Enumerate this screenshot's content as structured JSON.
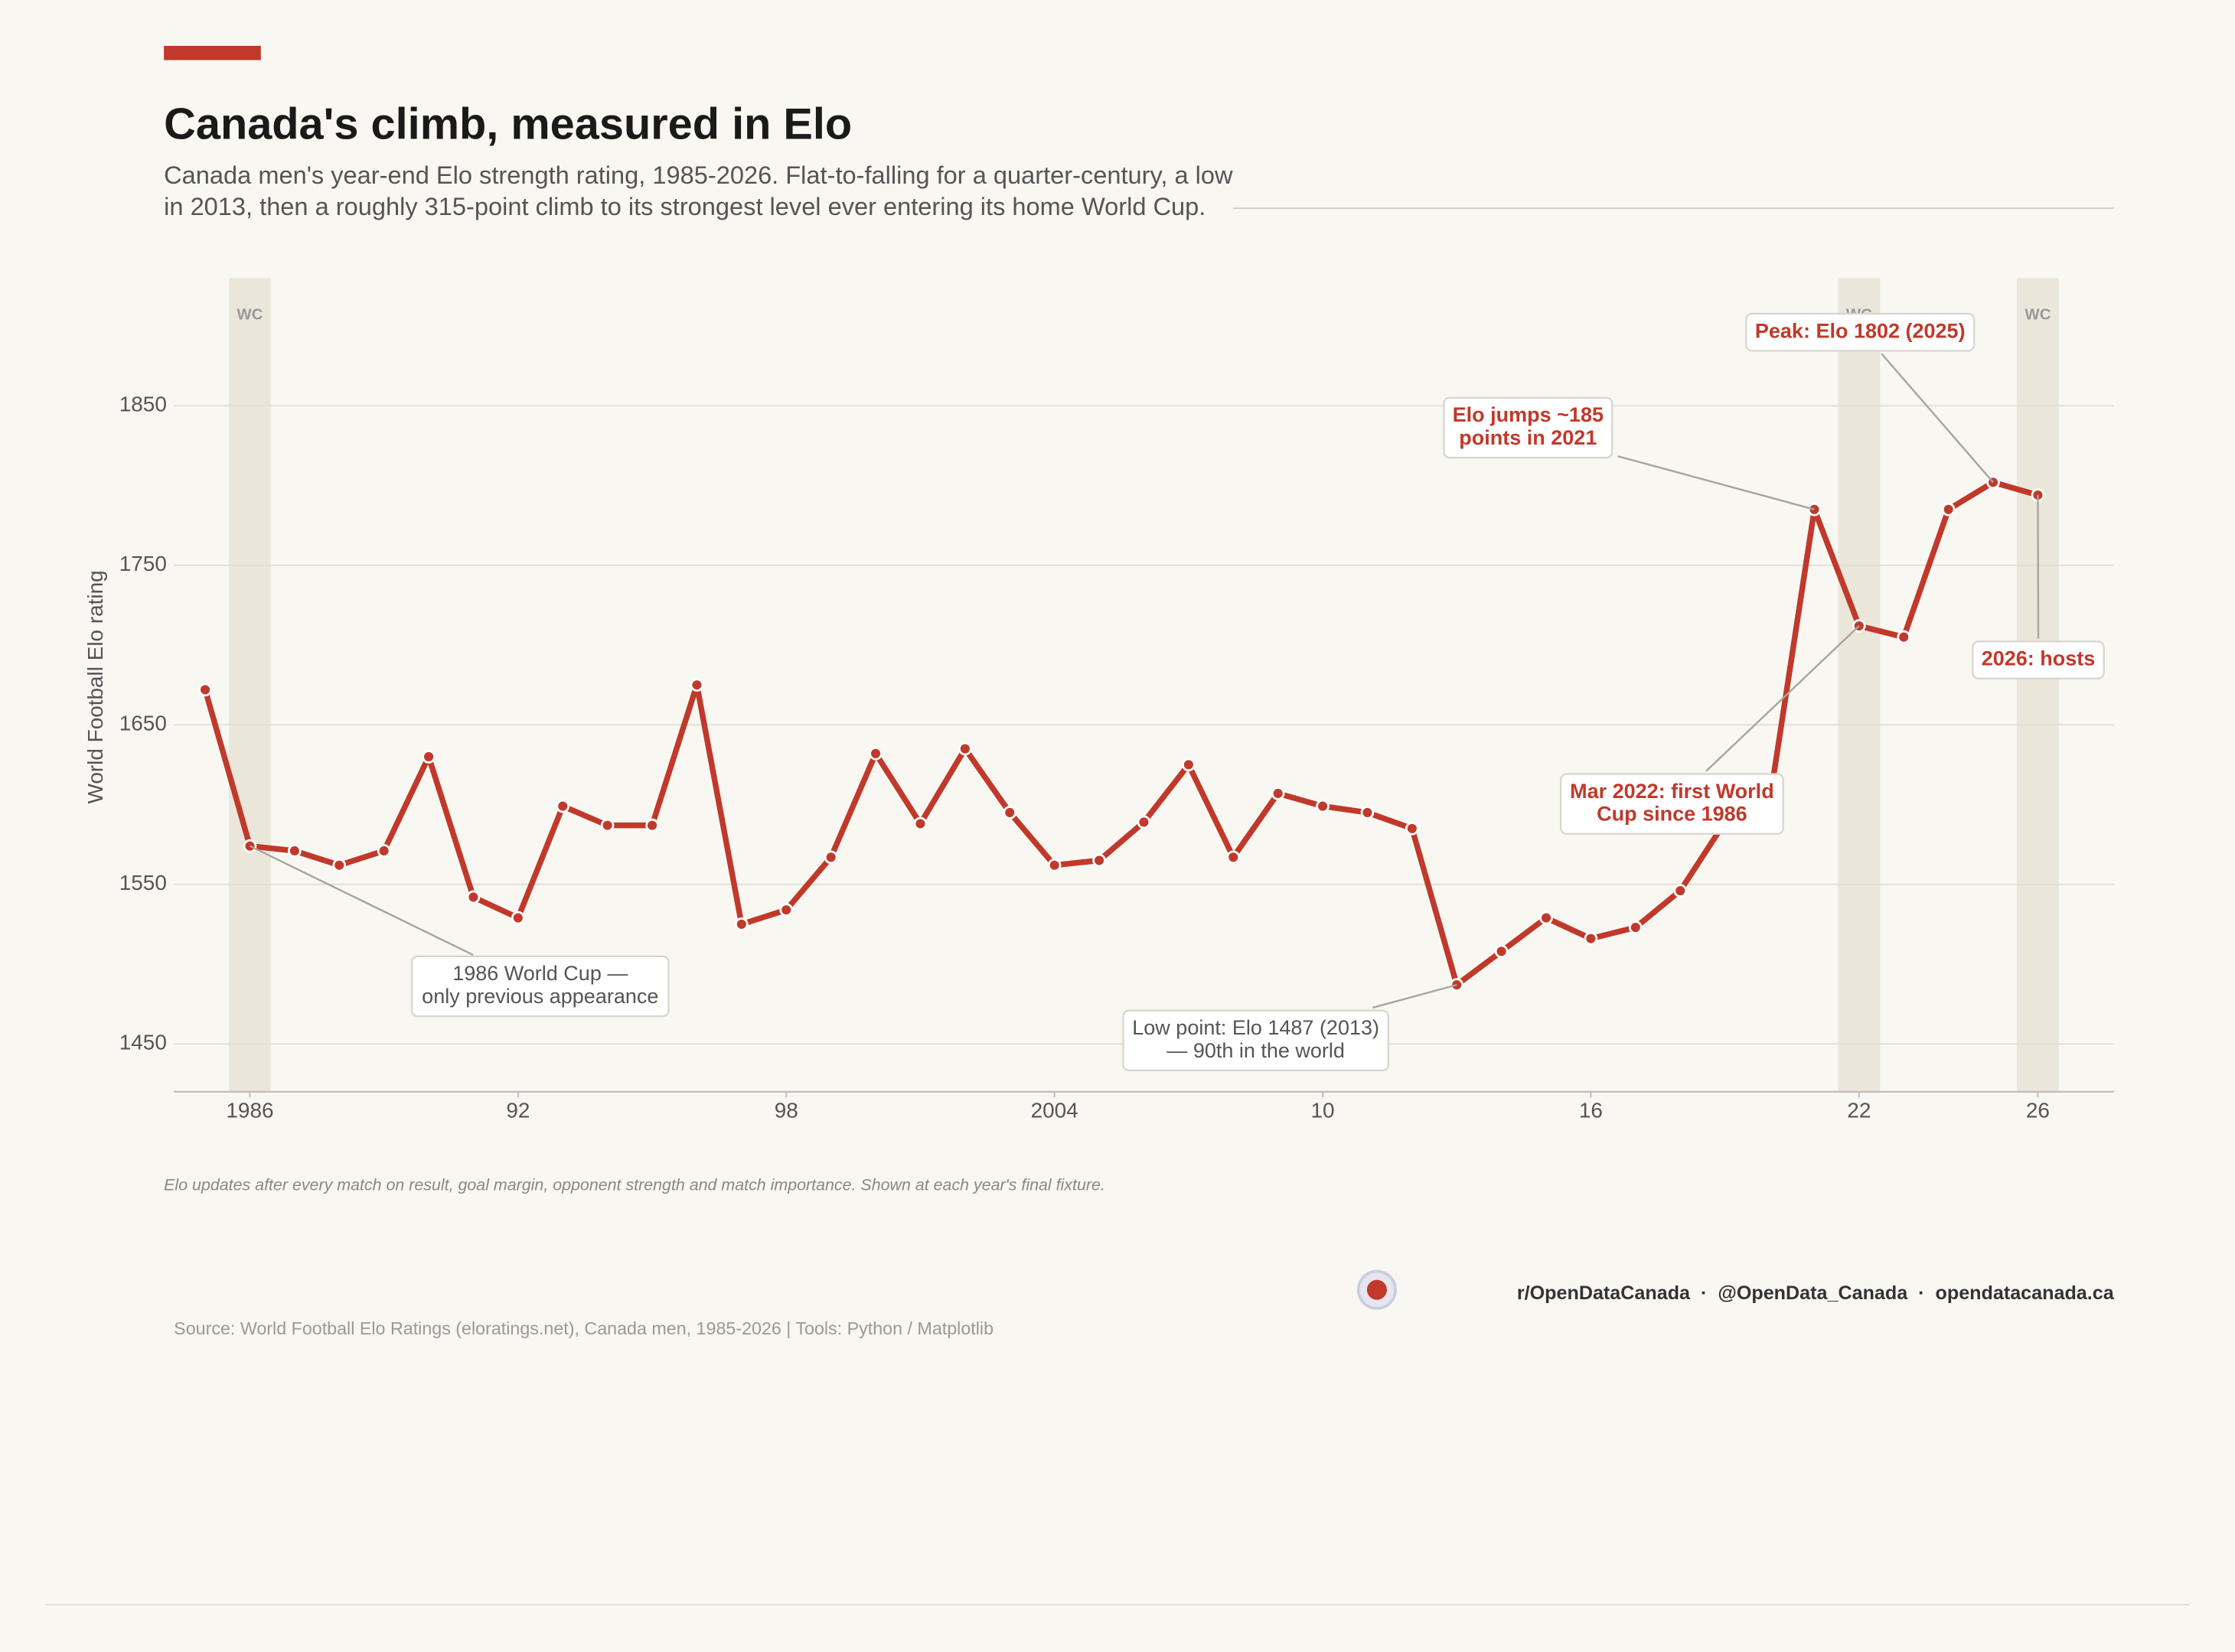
{
  "chart_data": {
    "type": "line",
    "title": "Canada's climb, measured in Elo",
    "subtitle_lines": [
      "Canada men's year-end Elo strength rating, 1985-2026. Flat-to-falling for a quarter-century, a low",
      "in 2013, then a roughly 315-point climb to its strongest level ever entering its home World Cup."
    ],
    "y_label": "World Football Elo rating",
    "x": [
      1985,
      1986,
      1987,
      1988,
      1989,
      1990,
      1991,
      1992,
      1993,
      1994,
      1995,
      1996,
      1997,
      1998,
      1999,
      2000,
      2001,
      2002,
      2003,
      2004,
      2005,
      2006,
      2007,
      2008,
      2009,
      2010,
      2011,
      2012,
      2013,
      2014,
      2015,
      2016,
      2017,
      2018,
      2019,
      2020,
      2021,
      2022,
      2023,
      2024,
      2025,
      2026
    ],
    "values": [
      1672,
      1574,
      1571,
      1562,
      1571,
      1630,
      1542,
      1529,
      1599,
      1587,
      1587,
      1675,
      1525,
      1534,
      1567,
      1632,
      1588,
      1635,
      1595,
      1562,
      1565,
      1589,
      1625,
      1567,
      1607,
      1599,
      1595,
      1585,
      1487,
      1508,
      1529,
      1516,
      1523,
      1546,
      1589,
      1602,
      1785,
      1712,
      1705,
      1785,
      1802,
      1794
    ],
    "color": "#c0392b",
    "xlim": [
      1984.3,
      2027.7
    ],
    "ylim": [
      1420,
      1930
    ],
    "xticks": [
      1986,
      {
        "value": 1992,
        "label": "92"
      },
      {
        "value": 1998,
        "label": "98"
      },
      2004,
      {
        "value": 2010,
        "label": "10"
      },
      {
        "value": 2016,
        "label": "16"
      },
      {
        "value": 2022,
        "label": "22"
      },
      {
        "value": 2026,
        "label": "26"
      }
    ],
    "yticks": [
      1450,
      1550,
      1650,
      1750,
      1850
    ],
    "grid": true,
    "world_cup_years": [
      1986,
      2022,
      2026
    ],
    "world_cup_label": "WC",
    "annotations": [
      {
        "lines": [
          "1986 World Cup —",
          "only previous appearance"
        ]
      },
      {
        "lines": [
          "Low point: Elo 1487 (2013)",
          "— 90th in the world"
        ]
      },
      {
        "lines": [
          "Elo jumps ~185",
          "points in 2021"
        ]
      },
      {
        "lines": [
          "Mar 2022: first World",
          "Cup since 1986"
        ]
      },
      {
        "lines": [
          "Peak: Elo 1802 (2025)"
        ]
      },
      {
        "lines": [
          "2026: hosts"
        ]
      }
    ],
    "note": "Elo updates after every match on result, goal margin, opponent strength and match importance. Shown at each year's final fixture.",
    "credits": "r/OpenDataCanada  ·  @OpenData_Canada  ·  opendatacanada.ca",
    "source": "Source: World Football Elo Ratings (eloratings.net), Canada men, 1985-2026  |  Tools: Python / Matplotlib"
  }
}
